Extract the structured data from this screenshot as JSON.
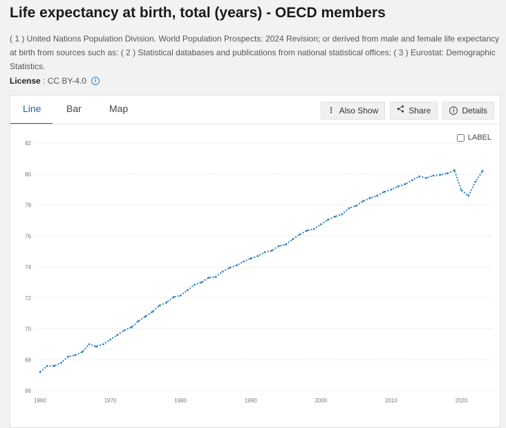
{
  "title": "Life expectancy at birth, total (years) - OECD members",
  "source": "( 1 ) United Nations Population Division. World Population Prospects: 2024 Revision; or derived from male and female life expectancy at birth from sources such as: ( 2 ) Statistical databases and publications from national statistical offices; ( 3 ) Eurostat: Demographic Statistics.",
  "license": {
    "label": "License",
    "separator": " : ",
    "value": "CC BY-4.0"
  },
  "tabs": [
    {
      "label": "Line",
      "active": true
    },
    {
      "label": "Bar",
      "active": false
    },
    {
      "label": "Map",
      "active": false
    }
  ],
  "toolbar": {
    "also_show": "Also Show",
    "share": "Share",
    "details": "Details"
  },
  "label_toggle": {
    "label": "LABEL",
    "checked": false
  },
  "colors": {
    "line": "#2f7fc1",
    "grid": "#e3e3e3",
    "active_tab": "#1f5f96"
  },
  "chart_data": {
    "type": "line",
    "title": "",
    "xlabel": "",
    "ylabel": "",
    "xlim": [
      1960,
      2023
    ],
    "ylim": [
      66,
      82
    ],
    "yticks": [
      66,
      68,
      70,
      72,
      74,
      76,
      78,
      80,
      82
    ],
    "xticks": [
      1960,
      1970,
      1980,
      1990,
      2000,
      2010,
      2020
    ],
    "grid": true,
    "line_style": "dotted",
    "series": [
      {
        "x": [
          1960,
          1961,
          1962,
          1963,
          1964,
          1965,
          1966,
          1967,
          1968,
          1969,
          1970,
          1971,
          1972,
          1973,
          1974,
          1975,
          1976,
          1977,
          1978,
          1979,
          1980,
          1981,
          1982,
          1983,
          1984,
          1985,
          1986,
          1987,
          1988,
          1989,
          1990,
          1991,
          1992,
          1993,
          1994,
          1995,
          1996,
          1997,
          1998,
          1999,
          2000,
          2001,
          2002,
          2003,
          2004,
          2005,
          2006,
          2007,
          2008,
          2009,
          2010,
          2011,
          2012,
          2013,
          2014,
          2015,
          2016,
          2017,
          2018,
          2019,
          2020,
          2021,
          2022,
          2023
        ],
        "values": [
          67.2,
          67.6,
          67.6,
          67.8,
          68.2,
          68.3,
          68.5,
          69.0,
          68.85,
          69.0,
          69.3,
          69.6,
          69.9,
          70.1,
          70.5,
          70.8,
          71.1,
          71.5,
          71.7,
          72.05,
          72.15,
          72.5,
          72.85,
          73.0,
          73.3,
          73.35,
          73.7,
          73.95,
          74.1,
          74.35,
          74.55,
          74.7,
          74.95,
          75.05,
          75.35,
          75.45,
          75.8,
          76.1,
          76.35,
          76.45,
          76.75,
          77.05,
          77.25,
          77.4,
          77.8,
          77.95,
          78.25,
          78.45,
          78.6,
          78.85,
          79.0,
          79.2,
          79.35,
          79.6,
          79.85,
          79.75,
          79.9,
          79.95,
          80.05,
          80.25,
          78.95,
          78.6,
          79.5,
          80.2
        ]
      }
    ]
  }
}
